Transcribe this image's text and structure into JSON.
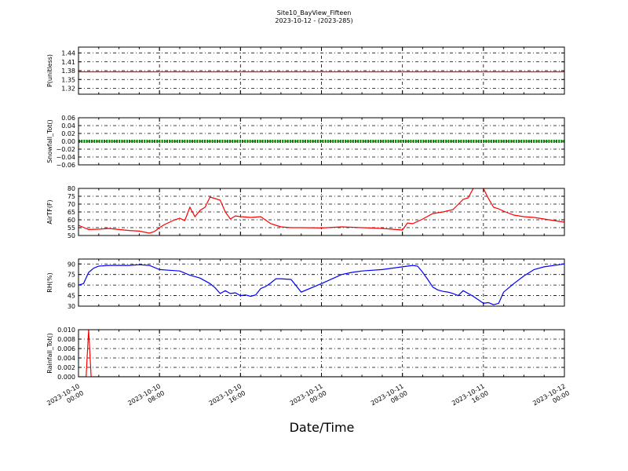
{
  "figure": {
    "title_line1": "Site10_BayView_Fifteen",
    "title_line2": "2023-10-12 - (2023-285)",
    "xlabel": "Date/Time"
  },
  "x_ticks": [
    [
      "2023-10-10",
      "00:00"
    ],
    [
      "2023-10-10",
      "08:00"
    ],
    [
      "2023-10-10",
      "16:00"
    ],
    [
      "2023-10-11",
      "00:00"
    ],
    [
      "2023-10-11",
      "08:00"
    ],
    [
      "2023-10-11",
      "16:00"
    ],
    [
      "2023-10-12",
      "00:00"
    ]
  ],
  "chart_data": [
    {
      "type": "line",
      "ylabel": "P(unitless)",
      "color": "#ff0000",
      "ylim": [
        1.3,
        1.46
      ],
      "yticks": [
        1.32,
        1.35,
        1.38,
        1.41,
        1.44
      ],
      "ytick_labels": [
        "1.32",
        "1.35",
        "1.38",
        "1.41",
        "1.44"
      ],
      "xlim": [
        "2023-10-10 00:00",
        "2023-10-12 00:00"
      ],
      "grid": true,
      "x": [
        "2023-10-10 00:00",
        "2023-10-12 00:00"
      ],
      "series": [
        {
          "values": [
            1.376,
            1.376
          ]
        }
      ]
    },
    {
      "type": "line",
      "ylabel": "Snowfall_Tot()",
      "color": "#008000",
      "marker": "dots",
      "ylim": [
        -0.06,
        0.06
      ],
      "yticks": [
        -0.06,
        -0.04,
        -0.02,
        0.0,
        0.02,
        0.04,
        0.06
      ],
      "ytick_labels": [
        "−0.06",
        "−0.04",
        "−0.02",
        "0.00",
        "0.02",
        "0.04",
        "0.06"
      ],
      "xlim": [
        "2023-10-10 00:00",
        "2023-10-12 00:00"
      ],
      "grid": true,
      "x": [
        "2023-10-10 00:00",
        "2023-10-12 00:00"
      ],
      "series": [
        {
          "values": [
            0.0,
            0.0
          ]
        }
      ]
    },
    {
      "type": "line",
      "ylabel": "AirTF(F)",
      "color": "#ff0000",
      "ylim": [
        50,
        80
      ],
      "yticks": [
        50,
        55,
        60,
        65,
        70,
        75,
        80
      ],
      "ytick_labels": [
        "50",
        "55",
        "60",
        "65",
        "70",
        "75",
        "80"
      ],
      "xlim": [
        "2023-10-10 00:00",
        "2023-10-12 00:00"
      ],
      "grid": true,
      "x": [
        "2023-10-10 00:00",
        "2023-10-10 01:00",
        "2023-10-10 02:00",
        "2023-10-10 03:00",
        "2023-10-10 04:00",
        "2023-10-10 05:00",
        "2023-10-10 06:00",
        "2023-10-10 07:00",
        "2023-10-10 07:30",
        "2023-10-10 08:00",
        "2023-10-10 08:30",
        "2023-10-10 09:00",
        "2023-10-10 09:30",
        "2023-10-10 10:00",
        "2023-10-10 10:30",
        "2023-10-10 11:00",
        "2023-10-10 11:30",
        "2023-10-10 12:00",
        "2023-10-10 12:30",
        "2023-10-10 13:00",
        "2023-10-10 13:30",
        "2023-10-10 14:00",
        "2023-10-10 14:30",
        "2023-10-10 15:00",
        "2023-10-10 15:30",
        "2023-10-10 16:00",
        "2023-10-10 16:30",
        "2023-10-10 17:00",
        "2023-10-10 18:00",
        "2023-10-10 19:00",
        "2023-10-10 20:00",
        "2023-10-10 21:00",
        "2023-10-10 22:00",
        "2023-10-11 00:00",
        "2023-10-11 02:00",
        "2023-10-11 04:00",
        "2023-10-11 06:00",
        "2023-10-11 07:00",
        "2023-10-11 08:00",
        "2023-10-11 08:30",
        "2023-10-11 09:00",
        "2023-10-11 10:00",
        "2023-10-11 11:00",
        "2023-10-11 12:00",
        "2023-10-11 13:00",
        "2023-10-11 14:00",
        "2023-10-11 14:30",
        "2023-10-11 15:00",
        "2023-10-11 15:30",
        "2023-10-11 16:00",
        "2023-10-11 16:30",
        "2023-10-11 17:00",
        "2023-10-11 17:30",
        "2023-10-11 18:00",
        "2023-10-11 19:00",
        "2023-10-11 20:00",
        "2023-10-11 21:00",
        "2023-10-11 22:00",
        "2023-10-12 00:00"
      ],
      "series": [
        {
          "values": [
            56.5,
            53.8,
            54.0,
            54.5,
            53.8,
            53.2,
            52.8,
            51.5,
            52.5,
            55.0,
            57.0,
            58.5,
            60.0,
            61.0,
            59.5,
            68.0,
            62.0,
            66.0,
            68.0,
            74.5,
            73.5,
            72.5,
            65.0,
            60.5,
            62.5,
            62.0,
            61.8,
            61.5,
            62.0,
            57.5,
            55.5,
            55.0,
            55.0,
            54.8,
            55.5,
            55.0,
            54.5,
            54.0,
            53.5,
            58.0,
            57.5,
            60.5,
            64.0,
            65.0,
            66.5,
            73.0,
            74.0,
            80.0,
            80.5,
            80.0,
            73.5,
            68.0,
            67.0,
            65.5,
            63.0,
            62.0,
            61.5,
            60.5,
            58.5
          ]
        }
      ]
    },
    {
      "type": "line",
      "ylabel": "RH(%)",
      "color": "#0000ff",
      "ylim": [
        30,
        97
      ],
      "yticks": [
        30,
        45,
        60,
        75,
        90
      ],
      "ytick_labels": [
        "30",
        "45",
        "60",
        "75",
        "90"
      ],
      "xlim": [
        "2023-10-10 00:00",
        "2023-10-12 00:00"
      ],
      "grid": true,
      "x": [
        "2023-10-10 00:00",
        "2023-10-10 00:30",
        "2023-10-10 01:00",
        "2023-10-10 01:30",
        "2023-10-10 02:00",
        "2023-10-10 03:00",
        "2023-10-10 04:00",
        "2023-10-10 05:00",
        "2023-10-10 06:00",
        "2023-10-10 07:00",
        "2023-10-10 08:00",
        "2023-10-10 09:00",
        "2023-10-10 10:00",
        "2023-10-10 11:00",
        "2023-10-10 12:00",
        "2023-10-10 13:00",
        "2023-10-10 13:30",
        "2023-10-10 14:00",
        "2023-10-10 14:30",
        "2023-10-10 15:00",
        "2023-10-10 15:30",
        "2023-10-10 16:00",
        "2023-10-10 16:30",
        "2023-10-10 17:00",
        "2023-10-10 17:30",
        "2023-10-10 18:00",
        "2023-10-10 18:30",
        "2023-10-10 19:00",
        "2023-10-10 19:30",
        "2023-10-10 20:00",
        "2023-10-10 21:00",
        "2023-10-10 22:00",
        "2023-10-11 00:00",
        "2023-10-11 02:00",
        "2023-10-11 03:00",
        "2023-10-11 04:00",
        "2023-10-11 06:00",
        "2023-10-11 08:00",
        "2023-10-11 09:00",
        "2023-10-11 09:30",
        "2023-10-11 10:00",
        "2023-10-11 10:30",
        "2023-10-11 11:00",
        "2023-10-11 11:30",
        "2023-10-11 12:00",
        "2023-10-11 12:30",
        "2023-10-11 13:00",
        "2023-10-11 13:30",
        "2023-10-11 14:00",
        "2023-10-11 15:00",
        "2023-10-11 15:30",
        "2023-10-11 16:00",
        "2023-10-11 16:30",
        "2023-10-11 17:00",
        "2023-10-11 17:30",
        "2023-10-11 18:00",
        "2023-10-11 19:00",
        "2023-10-11 20:00",
        "2023-10-11 21:00",
        "2023-10-11 22:00",
        "2023-10-12 00:00"
      ],
      "series": [
        {
          "values": [
            60,
            62,
            78,
            84,
            87,
            88,
            88,
            88,
            89,
            88,
            82,
            81,
            80,
            74,
            70,
            62,
            56,
            48,
            52,
            48,
            49,
            45,
            46,
            44,
            46,
            55,
            58,
            63,
            69,
            69,
            68,
            50,
            62,
            75,
            78,
            80,
            82,
            86,
            88,
            87,
            78,
            68,
            57,
            53,
            51,
            50,
            48,
            45,
            52,
            44,
            39,
            34,
            35,
            32,
            34,
            50,
            62,
            73,
            82,
            86,
            90
          ]
        }
      ]
    },
    {
      "type": "line",
      "ylabel": "Rainfall_Tot()",
      "color": "#ff0000",
      "ylim": [
        0.0,
        0.01
      ],
      "yticks": [
        0.0,
        0.002,
        0.004,
        0.006,
        0.008,
        0.01
      ],
      "ytick_labels": [
        "0.000",
        "0.002",
        "0.004",
        "0.006",
        "0.008",
        "0.010"
      ],
      "xlim": [
        "2023-10-10 00:00",
        "2023-10-12 00:00"
      ],
      "grid": true,
      "x": [
        "2023-10-10 00:00",
        "2023-10-10 00:45",
        "2023-10-10 01:00",
        "2023-10-10 01:15",
        "2023-10-12 00:00"
      ],
      "series": [
        {
          "values": [
            0.0,
            0.0,
            0.01,
            0.0,
            0.0
          ]
        }
      ]
    }
  ]
}
